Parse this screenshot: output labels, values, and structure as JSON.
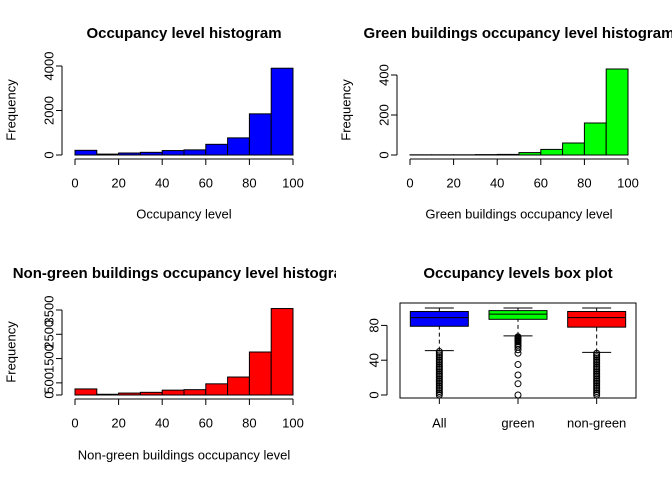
{
  "chart_data": [
    {
      "type": "histogram",
      "title": "Occupancy level histogram",
      "xlabel": "Occupancy level",
      "ylabel": "Frequency",
      "bins": [
        0,
        10,
        20,
        30,
        40,
        50,
        60,
        70,
        80,
        90,
        100
      ],
      "values": [
        210,
        40,
        90,
        120,
        200,
        230,
        480,
        770,
        1850,
        3900
      ],
      "color": "#0000ff",
      "xlim": [
        0,
        100
      ],
      "xticks": [
        0,
        20,
        40,
        60,
        80,
        100
      ],
      "ylim": [
        0,
        4000
      ],
      "yticks": [
        0,
        2000,
        4000
      ]
    },
    {
      "type": "histogram",
      "title": "Green buildings occupancy level histogram",
      "xlabel": "Green buildings occupancy level",
      "ylabel": "Frequency",
      "bins": [
        0,
        10,
        20,
        30,
        40,
        50,
        60,
        70,
        80,
        90,
        100
      ],
      "values": [
        1,
        1,
        1,
        2,
        3,
        12,
        28,
        60,
        160,
        430
      ],
      "color": "#00ff00",
      "xlim": [
        0,
        100
      ],
      "xticks": [
        0,
        20,
        40,
        60,
        80,
        100
      ],
      "ylim": [
        0,
        400
      ],
      "yticks": [
        0,
        200,
        400
      ]
    },
    {
      "type": "histogram",
      "title": "Non-green buildings occupancy level histogram",
      "xlabel": "Non-green buildings occupancy level",
      "ylabel": "Frequency",
      "bins": [
        0,
        10,
        20,
        30,
        40,
        50,
        60,
        70,
        80,
        90,
        100
      ],
      "values": [
        250,
        30,
        80,
        110,
        200,
        220,
        460,
        740,
        1770,
        3560
      ],
      "color": "#ff0000",
      "xlim": [
        0,
        100
      ],
      "xticks": [
        0,
        20,
        40,
        60,
        80,
        100
      ],
      "ylim": [
        0,
        3500
      ],
      "yticks": [
        0,
        500,
        1500,
        2500,
        3500
      ]
    },
    {
      "type": "box",
      "title": "Occupancy levels box plot",
      "categories": [
        "All",
        "green",
        "non-green"
      ],
      "colors": [
        "#0000ff",
        "#00ff00",
        "#ff0000"
      ],
      "ylim": [
        0,
        100
      ],
      "yticks": [
        0,
        40,
        80
      ],
      "boxes": [
        {
          "whislo": 51,
          "q1": 79,
          "med": 89,
          "q3": 96,
          "whishi": 100,
          "outliers": [
            0,
            2,
            4,
            6,
            8,
            10,
            12,
            14,
            16,
            18,
            20,
            22,
            24,
            26,
            28,
            30,
            32,
            34,
            36,
            38,
            40,
            42,
            44,
            46,
            48,
            50
          ]
        },
        {
          "whislo": 68,
          "q1": 87,
          "med": 93,
          "q3": 97,
          "whishi": 100,
          "outliers": [
            0,
            13,
            23,
            35,
            48,
            52,
            55,
            57,
            59,
            61,
            62,
            63,
            64,
            65,
            66,
            67
          ]
        },
        {
          "whislo": 49,
          "q1": 78,
          "med": 89,
          "q3": 96,
          "whishi": 100,
          "outliers": [
            0,
            2,
            4,
            6,
            8,
            10,
            12,
            14,
            16,
            18,
            20,
            22,
            24,
            26,
            28,
            30,
            32,
            34,
            36,
            38,
            40,
            42,
            44,
            46,
            48
          ]
        }
      ]
    }
  ]
}
